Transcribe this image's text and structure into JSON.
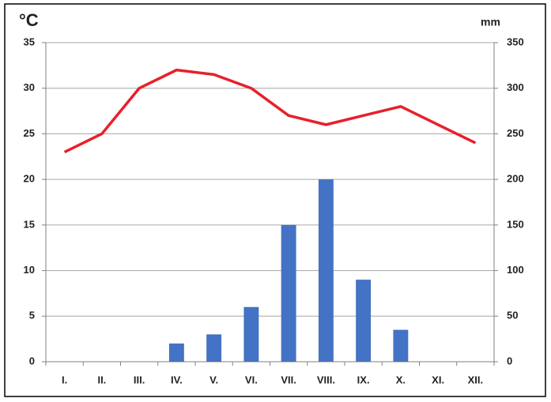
{
  "chart_data": {
    "type": "combo",
    "y_label": "°C",
    "y2_label": "mm",
    "categories": [
      "I.",
      "II.",
      "III.",
      "IV.",
      "V.",
      "VI.",
      "VII.",
      "VIII.",
      "IX.",
      "X.",
      "XI.",
      "XII."
    ],
    "series": [
      {
        "type": "bar",
        "axis": "y2",
        "color": "#4472c4",
        "values": [
          0,
          0,
          0,
          20,
          30,
          60,
          150,
          200,
          90,
          35,
          0,
          0
        ]
      },
      {
        "type": "line",
        "axis": "y",
        "color": "#e8202a",
        "values": [
          23,
          25,
          30,
          32,
          31.5,
          30,
          27,
          26,
          27,
          28,
          26,
          24
        ]
      }
    ],
    "ylim": [
      0,
      35
    ],
    "yticks": [
      0,
      5,
      10,
      15,
      20,
      25,
      30,
      35
    ],
    "y2lim": [
      0,
      350
    ],
    "y2ticks": [
      0,
      50,
      100,
      150,
      200,
      250,
      300,
      350
    ],
    "grid": true
  }
}
